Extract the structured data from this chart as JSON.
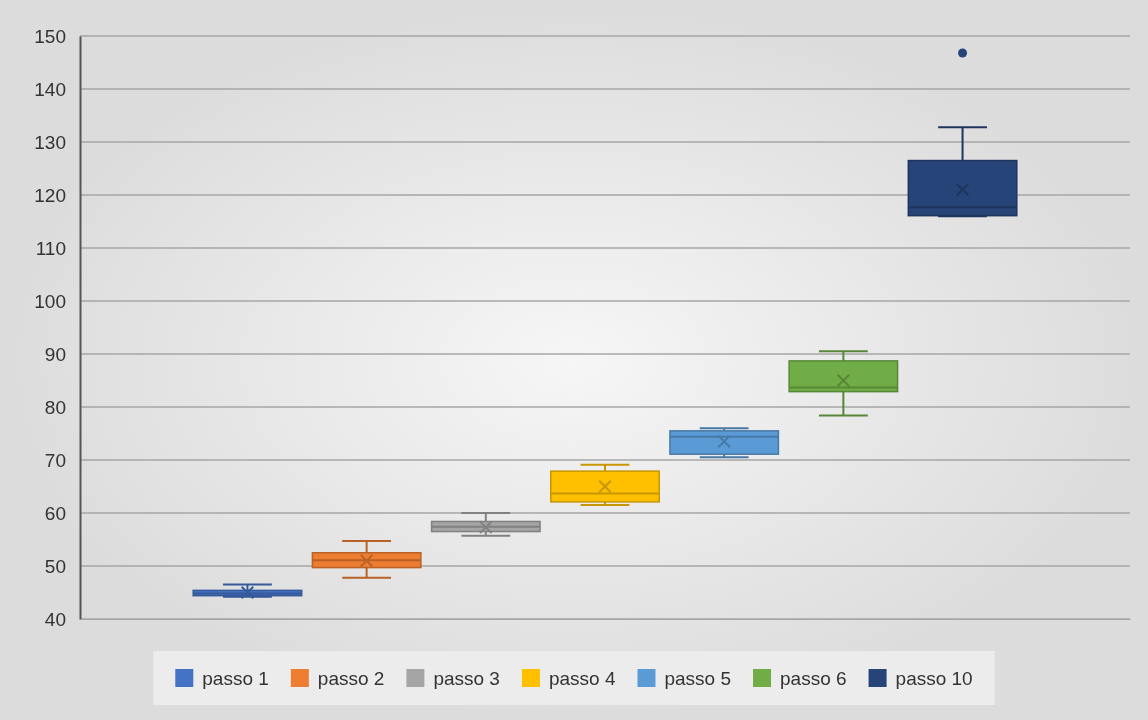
{
  "chart_data": {
    "type": "box",
    "categories": [
      null
    ],
    "series": [
      {
        "name": "passo 1",
        "color": "#4472c4",
        "boxes": [
          {
            "low": 44.2,
            "q1": 44.4,
            "median": 44.8,
            "q3": 45.4,
            "high": 46.5,
            "mean": 45.0
          }
        ]
      },
      {
        "name": "passo 2",
        "color": "#ed7d31",
        "boxes": [
          {
            "low": 47.8,
            "q1": 49.7,
            "median": 51.1,
            "q3": 52.5,
            "high": 54.7,
            "mean": 51.0
          }
        ]
      },
      {
        "name": "passo 3",
        "color": "#a5a5a5",
        "boxes": [
          {
            "low": 55.7,
            "q1": 56.5,
            "median": 57.4,
            "q3": 58.4,
            "high": 60.0,
            "mean": 57.3
          }
        ]
      },
      {
        "name": "passo 4",
        "color": "#ffc000",
        "boxes": [
          {
            "low": 61.5,
            "q1": 62.1,
            "median": 63.7,
            "q3": 67.9,
            "high": 69.1,
            "mean": 65.0
          }
        ]
      },
      {
        "name": "passo 5",
        "color": "#5b9bd5",
        "boxes": [
          {
            "low": 70.5,
            "q1": 71.1,
            "median": 74.4,
            "q3": 75.5,
            "high": 76.0,
            "mean": 73.5
          }
        ]
      },
      {
        "name": "passo 6",
        "color": "#70ad47",
        "boxes": [
          {
            "low": 78.4,
            "q1": 82.9,
            "median": 83.7,
            "q3": 88.7,
            "high": 90.5,
            "mean": 85.0
          }
        ]
      },
      {
        "name": "passo 10",
        "color": "#264478",
        "boxes": [
          {
            "low": 116.0,
            "q1": 116.1,
            "median": 117.7,
            "q3": 126.5,
            "high": 132.8,
            "mean": 121.0,
            "outliers": [
              146.8
            ]
          }
        ]
      }
    ],
    "ylim": [
      40,
      150
    ],
    "yticks": [
      40,
      50,
      60,
      70,
      80,
      90,
      100,
      110,
      120,
      130,
      140,
      150
    ],
    "grid": "y",
    "legend": "bottom",
    "marker": "cross"
  }
}
